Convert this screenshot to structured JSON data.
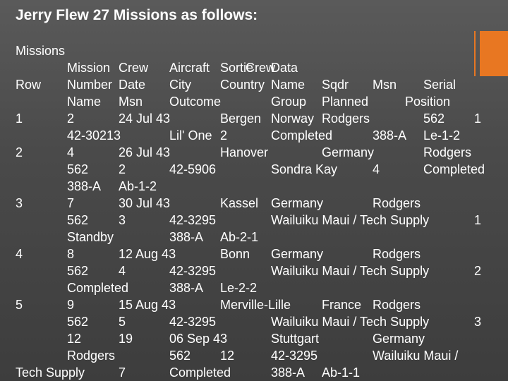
{
  "title": "Jerry Flew 27 Missions as follows:",
  "lines": [
    [
      "Missions"
    ],
    [
      "Mission",
      "Crew",
      "Aircraft",
      "Sortie",
      "Crew",
      "Data"
    ],
    [
      "Row",
      "Number",
      "Date",
      "City",
      "Country",
      "Name",
      "Sqdr",
      "Msn",
      "Serial"
    ],
    [
      "Name",
      "Msn",
      "Outcome",
      "Group",
      "Planned",
      "Position"
    ],
    [
      "1",
      "2",
      "24 Jul 43",
      "Bergen",
      "Norway",
      "Rodgers",
      "562",
      "1"
    ],
    [
      "42-30213",
      "Lil' One",
      "2",
      "Completed",
      "388-A",
      "Le-1-2"
    ],
    [
      "2",
      "4",
      "26 Jul 43",
      "Hanover",
      "Germany",
      "Rodgers"
    ],
    [
      "562",
      "2",
      "42-5906",
      "Sondra Kay",
      "4",
      "Completed"
    ],
    [
      "388-A",
      "Ab-1-2"
    ],
    [
      "3",
      "7",
      "30 Jul 43",
      "Kassel",
      "Germany",
      "Rodgers"
    ],
    [
      "562",
      "3",
      "42-3295",
      "Wailuiku Maui / Tech Supply",
      "1"
    ],
    [
      "Standby",
      "388-A",
      "Ab-2-1"
    ],
    [
      "4",
      "8",
      "12 Aug 43",
      "Bonn",
      "Germany",
      "Rodgers"
    ],
    [
      "562",
      "4",
      "42-3295",
      "Wailuiku Maui / Tech Supply",
      "2"
    ],
    [
      "Completed",
      "388-A",
      "Le-2-2"
    ],
    [
      "5",
      "9",
      "15 Aug 43",
      "Merville-Lille",
      "France",
      "Rodgers"
    ],
    [
      "562",
      "5",
      "42-3295",
      "Wailuiku Maui / Tech Supply",
      "3"
    ],
    [
      "12",
      "19",
      "06 Sep 43",
      "Stuttgart",
      "Germany"
    ],
    [
      "Rodgers",
      "562",
      "12",
      "42-3295",
      "Wailuiku Maui /"
    ],
    [
      "Tech Supply",
      "7",
      "Completed",
      "388-A",
      "Ab-1-1"
    ]
  ]
}
